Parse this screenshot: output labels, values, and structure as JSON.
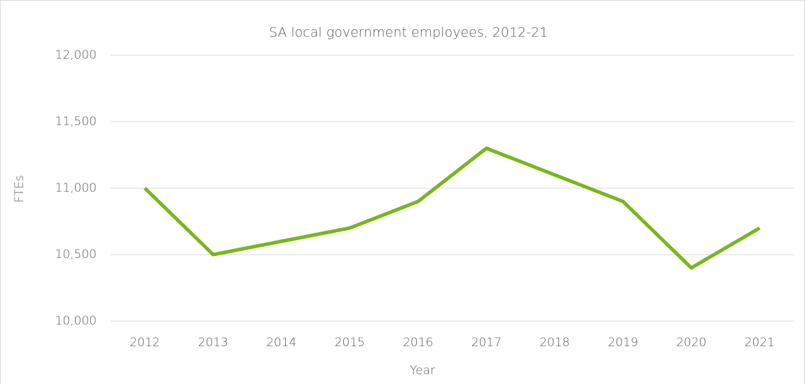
{
  "chart_data": {
    "type": "line",
    "title": "SA local government employees, 2012-21",
    "x_label": "Year",
    "y_label": "FTEs",
    "categories": [
      "2012",
      "2013",
      "2014",
      "2015",
      "2016",
      "2017",
      "2018",
      "2019",
      "2020",
      "2021"
    ],
    "series": [
      {
        "name": "FTEs",
        "color": "#7ab51d",
        "values": [
          11000,
          10500,
          10600,
          10700,
          10900,
          11300,
          11100,
          10900,
          10400,
          10700
        ]
      }
    ],
    "ylim": [
      10000,
      12000
    ],
    "yticks": [
      {
        "value": 10000,
        "label": "10,000"
      },
      {
        "value": 10500,
        "label": "10,500"
      },
      {
        "value": 11000,
        "label": "11,000"
      },
      {
        "value": 11500,
        "label": "11,500"
      },
      {
        "value": 12000,
        "label": "12,000"
      }
    ],
    "grid": true
  }
}
